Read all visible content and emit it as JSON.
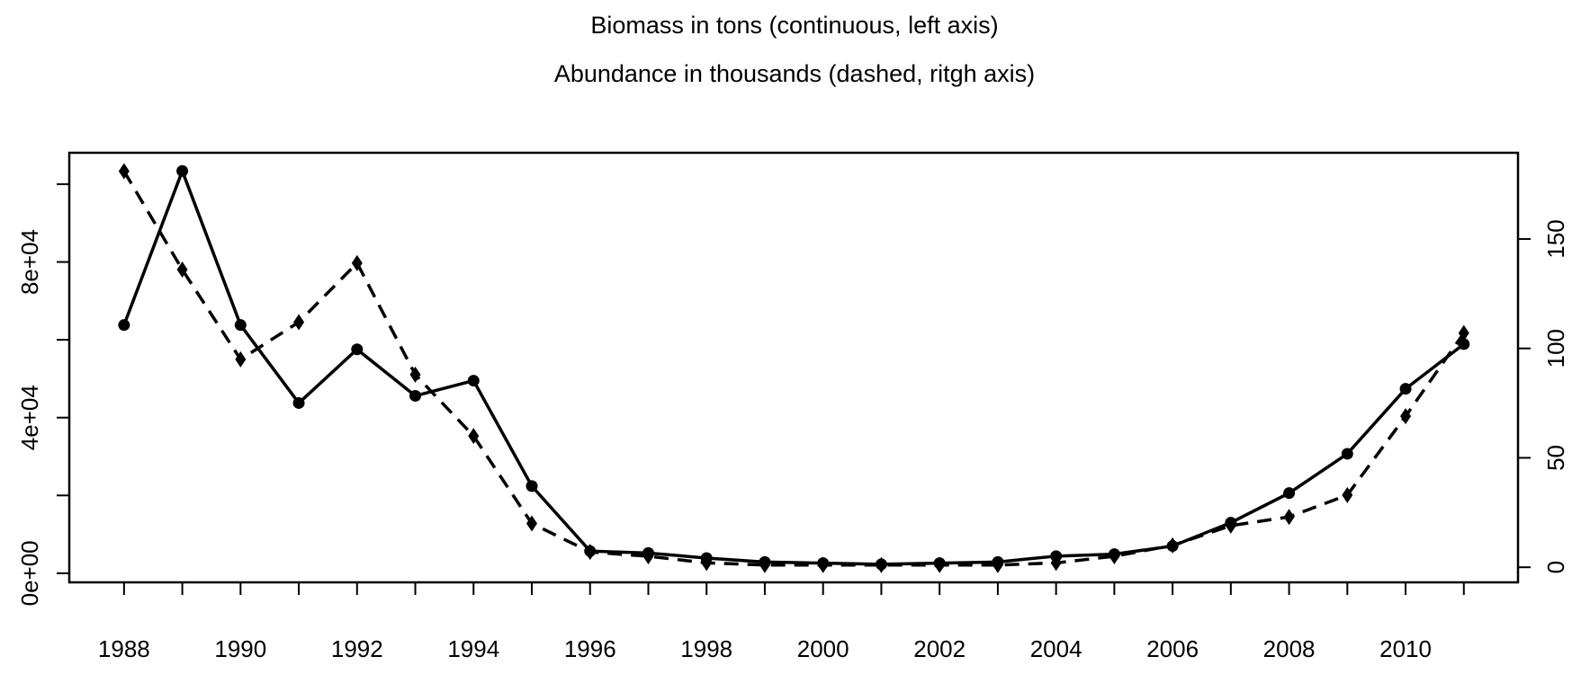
{
  "chart_data": {
    "type": "line",
    "title": "Biomass in tons (continuous, left axis)",
    "subtitle": "Abundance in thousands (dashed, ritgh axis)",
    "x": [
      1988,
      1989,
      1990,
      1991,
      1992,
      1993,
      1994,
      1995,
      1996,
      1997,
      1998,
      1999,
      2000,
      2001,
      2002,
      2003,
      2004,
      2005,
      2006,
      2007,
      2008,
      2009,
      2010,
      2011
    ],
    "series": [
      {
        "color": "#000000",
        "dash": false,
        "marker": "circle",
        "values": [
          63800,
          103400,
          63800,
          43750,
          57550,
          45600,
          49500,
          22400,
          5700,
          5200,
          3900,
          2900,
          2600,
          2300,
          2600,
          2900,
          4400,
          4900,
          7000,
          13000,
          20600,
          30700,
          47400,
          58900
        ]
      },
      {
        "color": "#000000",
        "dash": true,
        "marker": "diamond",
        "axis": "y2",
        "values": [
          181,
          136,
          95,
          112,
          139,
          88,
          60,
          20,
          7,
          5,
          2,
          1,
          1,
          1,
          1,
          1,
          2,
          5,
          10,
          19,
          23,
          33,
          69,
          107
        ]
      }
    ],
    "xlim": [
      1987.06,
      2011.93
    ],
    "xticks": [
      1988,
      {
        "value": 1989
      },
      1990,
      {
        "value": 1991
      },
      1992,
      {
        "value": 1993
      },
      1994,
      {
        "value": 1995
      },
      1996,
      {
        "value": 1997
      },
      1998,
      {
        "value": 1999
      },
      2000,
      {
        "value": 2001
      },
      2002,
      {
        "value": 2003
      },
      2004,
      {
        "value": 2005
      },
      2006,
      {
        "value": 2007
      },
      2008,
      {
        "value": 2009
      },
      2010,
      {
        "value": 2011
      }
    ],
    "ylim": [
      -2340,
      108070
    ],
    "yticks": [
      {
        "value": 0,
        "label": "0e+00"
      },
      {
        "value": 20000
      },
      {
        "value": 40000,
        "label": "4e+04"
      },
      {
        "value": 60000
      },
      {
        "value": 80000,
        "label": "8e+04"
      },
      {
        "value": 100000
      }
    ],
    "y2lim": [
      -6.9,
      189.4
    ],
    "y2ticks": [
      0,
      50,
      100,
      150
    ]
  }
}
